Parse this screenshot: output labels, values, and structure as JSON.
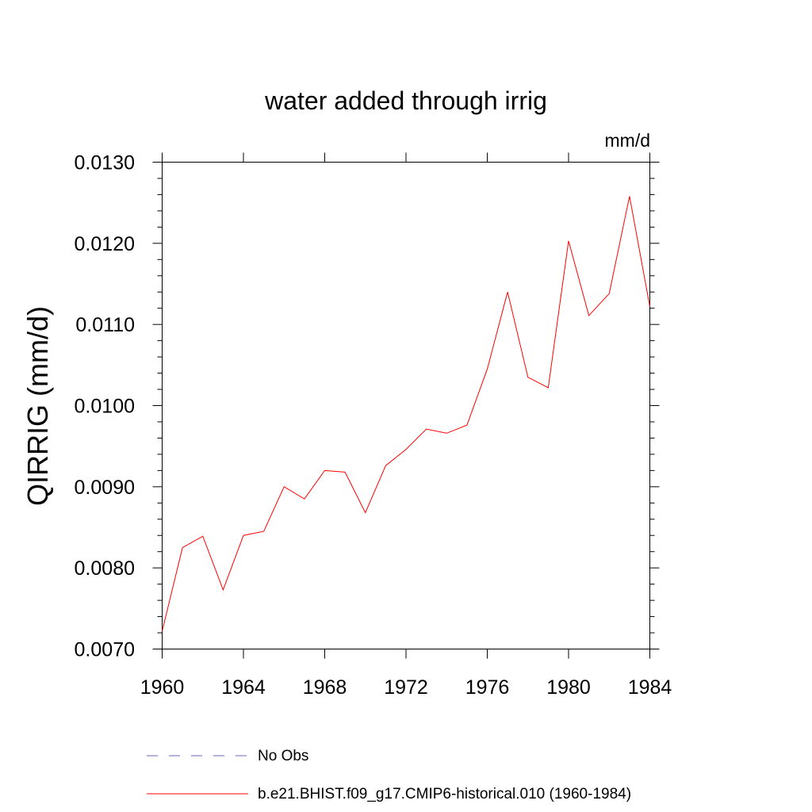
{
  "chart_data": {
    "type": "line",
    "title": "water added through irrig",
    "units": "mm/d",
    "ylabel": "QIRRIG  (mm/d)",
    "xlabel": "",
    "xlim": [
      1960,
      1984
    ],
    "ylim": [
      0.007,
      0.013
    ],
    "x_ticks": [
      "1960",
      "1964",
      "1968",
      "1972",
      "1976",
      "1980",
      "1984"
    ],
    "y_ticks": [
      "0.0070",
      "0.0080",
      "0.0090",
      "0.0100",
      "0.0110",
      "0.0120",
      "0.0130"
    ],
    "grid": false,
    "legend_position": "bottom",
    "x": [
      1960,
      1961,
      1962,
      1963,
      1964,
      1965,
      1966,
      1967,
      1968,
      1969,
      1970,
      1971,
      1972,
      1973,
      1974,
      1975,
      1976,
      1977,
      1978,
      1979,
      1980,
      1981,
      1982,
      1983,
      1984
    ],
    "series": [
      {
        "name": "b.e21.BHIST.f09_g17.CMIP6-historical.010 (1960-1984)",
        "color": "#ff0000",
        "style": "solid",
        "values": [
          0.00722,
          0.00825,
          0.00839,
          0.00773,
          0.0084,
          0.00845,
          0.009,
          0.00885,
          0.0092,
          0.00918,
          0.00868,
          0.00926,
          0.00946,
          0.00971,
          0.00966,
          0.00976,
          0.01045,
          0.0114,
          0.01035,
          0.01022,
          0.01203,
          0.01111,
          0.01138,
          0.01258,
          0.01122
        ]
      }
    ],
    "legend": [
      {
        "label": "No Obs",
        "color": "#6666bb",
        "style": "dashed"
      },
      {
        "label": "b.e21.BHIST.f09_g17.CMIP6-historical.010 (1960-1984)",
        "color": "#ff0000",
        "style": "solid"
      }
    ]
  }
}
